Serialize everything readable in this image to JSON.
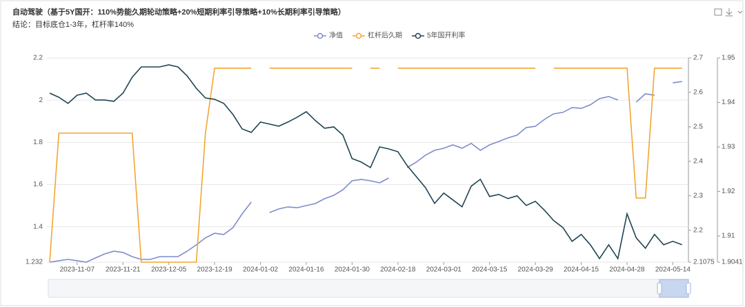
{
  "chart_data": {
    "type": "line",
    "title": "自动驾驶（基于5Y国开：110%势能久期轮动策略+20%短期利率引导策略+10%长期利率引导策略）",
    "subtitle": "结论：目标底仓1-3年，杠杆率140%",
    "categories": [
      null,
      null,
      null,
      "2023-11-07",
      null,
      null,
      null,
      null,
      "2023-11-21",
      null,
      null,
      null,
      null,
      "2023-12-05",
      null,
      null,
      null,
      null,
      "2023-12-19",
      null,
      null,
      null,
      null,
      "2024-01-02",
      null,
      null,
      null,
      null,
      "2024-01-16",
      null,
      null,
      null,
      null,
      "2024-01-30",
      null,
      null,
      null,
      null,
      "2024-02-18",
      null,
      null,
      null,
      null,
      "2024-03-01",
      null,
      null,
      null,
      null,
      "2024-03-15",
      null,
      null,
      null,
      null,
      "2024-03-29",
      null,
      null,
      null,
      null,
      "2024-04-15",
      null,
      null,
      null,
      null,
      "2024-04-28",
      null,
      null,
      null,
      null,
      "2024-05-14",
      null
    ],
    "series": [
      {
        "name": "净值",
        "color": "#7d8ccc",
        "axis": "y",
        "values": [
          1.232,
          1.239,
          1.245,
          1.239,
          1.232,
          1.252,
          1.271,
          1.284,
          1.278,
          1.258,
          1.245,
          1.245,
          1.258,
          1.258,
          1.258,
          1.284,
          1.314,
          1.347,
          1.369,
          1.363,
          1.396,
          1.461,
          1.517,
          null,
          1.467,
          1.484,
          1.494,
          1.49,
          1.5,
          1.51,
          1.533,
          1.549,
          1.575,
          1.618,
          1.624,
          1.618,
          1.608,
          1.631,
          null,
          1.68,
          1.706,
          1.739,
          1.762,
          1.772,
          1.788,
          1.772,
          1.795,
          1.762,
          1.788,
          1.804,
          1.821,
          1.834,
          1.87,
          1.876,
          1.909,
          1.935,
          1.942,
          1.965,
          1.961,
          1.978,
          2.007,
          2.017,
          2.001,
          null,
          1.991,
          2.03,
          2.023,
          null,
          2.082,
          2.088
        ]
      },
      {
        "name": "杠杆后久期",
        "color": "#f2a531",
        "axis": "y3",
        "values": [
          1.9041,
          1.9331,
          1.9331,
          1.9331,
          1.9331,
          1.9331,
          1.9331,
          1.9331,
          1.9331,
          1.9331,
          1.9041,
          1.9041,
          1.9041,
          1.9041,
          1.9041,
          1.9041,
          1.9041,
          1.9331,
          1.9477,
          1.9477,
          1.9477,
          1.9477,
          1.9477,
          null,
          1.9477,
          1.9477,
          1.9477,
          1.9477,
          1.9477,
          1.9477,
          1.9477,
          1.9477,
          1.9477,
          1.9477,
          null,
          1.9477,
          1.9477,
          null,
          1.9477,
          1.9477,
          1.9477,
          1.9477,
          1.9477,
          1.9477,
          1.9477,
          1.9477,
          1.9477,
          1.9477,
          1.9477,
          1.9477,
          1.9477,
          1.9477,
          1.9477,
          1.9477,
          null,
          1.9477,
          1.9477,
          1.9477,
          1.9477,
          1.9477,
          1.9477,
          1.9477,
          1.9477,
          1.9477,
          1.9185,
          1.9185,
          1.9477,
          1.9477,
          1.9477,
          1.9477
        ]
      },
      {
        "name": "5年国开利率",
        "color": "#1e4452",
        "axis": "y2",
        "values": [
          2.598,
          2.586,
          2.568,
          2.592,
          2.598,
          2.578,
          2.578,
          2.574,
          2.598,
          2.644,
          2.674,
          2.674,
          2.674,
          2.68,
          2.674,
          2.648,
          2.612,
          2.584,
          2.58,
          2.568,
          2.536,
          2.494,
          2.484,
          2.514,
          2.508,
          2.502,
          2.514,
          2.528,
          2.544,
          2.518,
          2.496,
          2.5,
          2.476,
          2.408,
          2.398,
          2.382,
          2.442,
          2.436,
          2.428,
          2.388,
          2.356,
          2.324,
          2.278,
          2.308,
          2.288,
          2.268,
          2.328,
          2.348,
          2.298,
          2.304,
          2.292,
          2.3,
          2.272,
          2.284,
          2.258,
          2.228,
          2.208,
          2.168,
          2.188,
          2.158,
          2.118,
          2.158,
          2.118,
          2.248,
          2.178,
          2.148,
          2.188,
          2.158,
          2.168,
          2.158
        ]
      }
    ],
    "ylim": [
      1.232,
      2.2
    ],
    "yticks": [
      1.232,
      1.4,
      1.6,
      1.8,
      2,
      2.2
    ],
    "y2lim": [
      2.1075,
      2.7
    ],
    "y2ticks": [
      2.1075,
      2.2,
      2.3,
      2.4,
      2.5,
      2.6,
      2.7
    ],
    "y3lim": [
      1.9041,
      1.95
    ],
    "y3ticks": [
      1.9041,
      1.91,
      1.92,
      1.93,
      1.94,
      1.95
    ],
    "grid": true
  }
}
